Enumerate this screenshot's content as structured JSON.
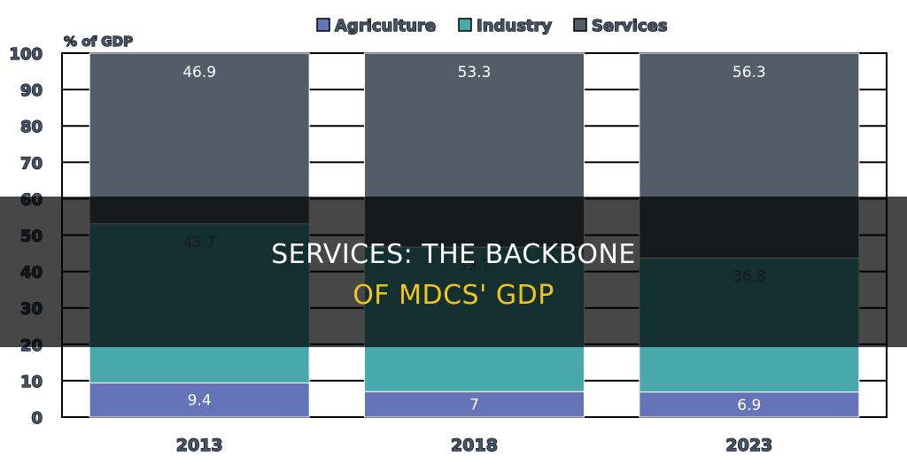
{
  "headline": {
    "line1": "SERVICES: THE BACKBONE",
    "line2": "OF MDCS' GDP"
  },
  "colors": {
    "agriculture": "#6574b8",
    "industry": "#48a8ac",
    "services": "#535d6a",
    "headline_line2": "#f0c419"
  },
  "chart_data": {
    "type": "bar",
    "stacked": true,
    "categories": [
      "2013",
      "2018",
      "2023"
    ],
    "series": [
      {
        "name": "Agriculture",
        "values": [
          9.4,
          7,
          6.9
        ]
      },
      {
        "name": "Industry",
        "values": [
          43.7,
          39.7,
          36.8
        ]
      },
      {
        "name": "Services",
        "values": [
          46.9,
          53.3,
          56.3
        ]
      }
    ],
    "ylabel": "% of GDP",
    "ylim": [
      0,
      100
    ],
    "yticks": [
      0,
      10,
      20,
      30,
      40,
      50,
      60,
      70,
      80,
      90,
      100
    ],
    "legend_position": "top",
    "data_labels": true,
    "grid": false
  }
}
